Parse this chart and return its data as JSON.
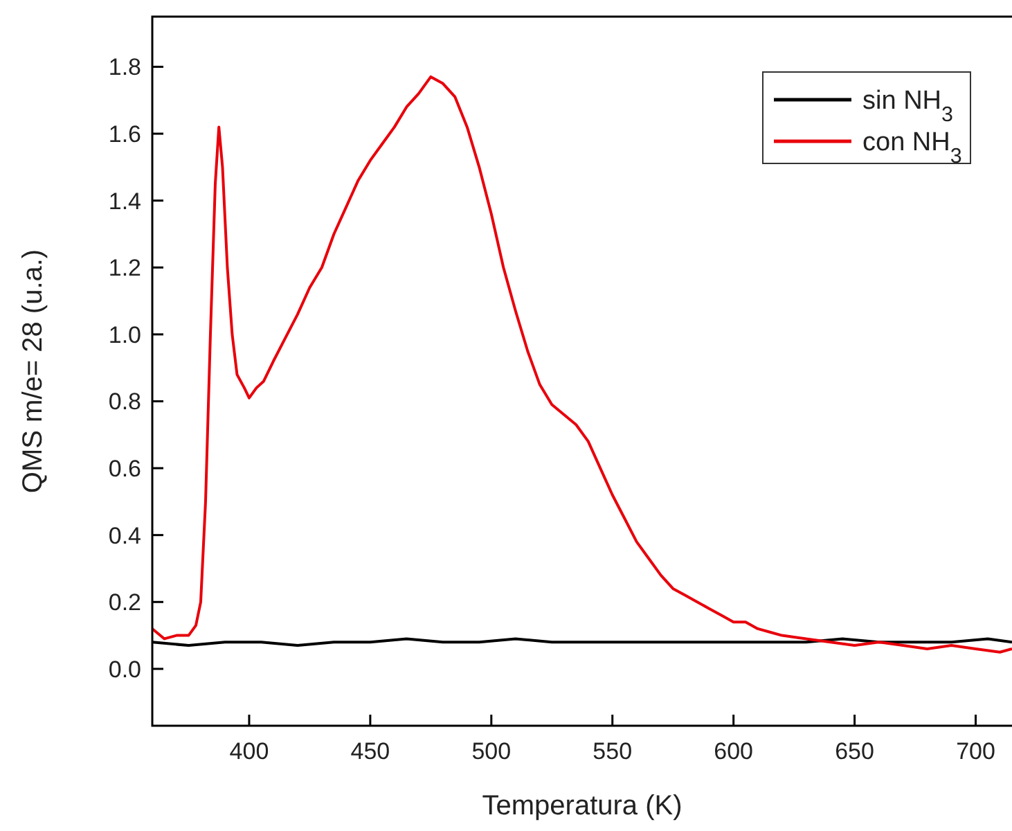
{
  "chart_data": {
    "type": "line",
    "xlabel": "Temperatura (K)",
    "ylabel": "QMS m/e= 28 (u.a.)",
    "xlim": [
      360,
      715
    ],
    "ylim": [
      -0.17,
      1.95
    ],
    "xticks": [
      400,
      450,
      500,
      550,
      600,
      650,
      700
    ],
    "yticks": [
      {
        "value": 0,
        "label": "0.0"
      },
      {
        "value": 0.2,
        "label": "0.2"
      },
      {
        "value": 0.4,
        "label": "0.4"
      },
      {
        "value": 0.6,
        "label": "0.6"
      },
      {
        "value": 0.8,
        "label": "0.8"
      },
      {
        "value": 1,
        "label": "1.0"
      },
      {
        "value": 1.2,
        "label": "1.2"
      },
      {
        "value": 1.4,
        "label": "1.4"
      },
      {
        "value": 1.6,
        "label": "1.6"
      },
      {
        "value": 1.8,
        "label": "1.8"
      }
    ],
    "grid": false,
    "legend": "top right",
    "line_style": "solid",
    "marker": "none",
    "series": [
      {
        "name": "sin NH$_{3}$",
        "color": "#000000",
        "x": [
          360,
          375,
          390,
          405,
          420,
          435,
          450,
          465,
          480,
          495,
          510,
          525,
          540,
          555,
          570,
          585,
          600,
          615,
          630,
          645,
          660,
          675,
          690,
          705,
          715
        ],
        "values": [
          0.08,
          0.07,
          0.08,
          0.08,
          0.07,
          0.08,
          0.08,
          0.09,
          0.08,
          0.08,
          0.09,
          0.08,
          0.08,
          0.08,
          0.08,
          0.08,
          0.08,
          0.08,
          0.08,
          0.09,
          0.08,
          0.08,
          0.08,
          0.09,
          0.08
        ]
      },
      {
        "name": "con NH$_{3}$",
        "color": "#e8000b",
        "x": [
          360,
          365,
          370,
          375,
          378,
          380,
          382,
          384,
          386,
          387.5,
          389,
          391,
          393,
          395,
          398,
          400,
          403,
          406,
          410,
          415,
          420,
          425,
          430,
          435,
          440,
          445,
          450,
          455,
          460,
          465,
          470,
          475,
          480,
          485,
          490,
          495,
          500,
          505,
          510,
          515,
          520,
          525,
          530,
          535,
          540,
          545,
          550,
          555,
          560,
          565,
          570,
          575,
          580,
          585,
          590,
          595,
          600,
          605,
          610,
          615,
          620,
          630,
          640,
          650,
          660,
          670,
          680,
          690,
          700,
          710,
          715
        ],
        "values": [
          0.12,
          0.09,
          0.1,
          0.1,
          0.13,
          0.2,
          0.5,
          1.0,
          1.45,
          1.62,
          1.5,
          1.2,
          1.0,
          0.88,
          0.84,
          0.81,
          0.84,
          0.86,
          0.92,
          0.99,
          1.06,
          1.14,
          1.2,
          1.3,
          1.38,
          1.46,
          1.52,
          1.57,
          1.62,
          1.68,
          1.72,
          1.77,
          1.75,
          1.71,
          1.62,
          1.5,
          1.36,
          1.2,
          1.07,
          0.95,
          0.85,
          0.79,
          0.76,
          0.73,
          0.68,
          0.6,
          0.52,
          0.45,
          0.38,
          0.33,
          0.28,
          0.24,
          0.22,
          0.2,
          0.18,
          0.16,
          0.14,
          0.14,
          0.12,
          0.11,
          0.1,
          0.09,
          0.08,
          0.07,
          0.08,
          0.07,
          0.06,
          0.07,
          0.06,
          0.05,
          0.06
        ]
      }
    ]
  }
}
